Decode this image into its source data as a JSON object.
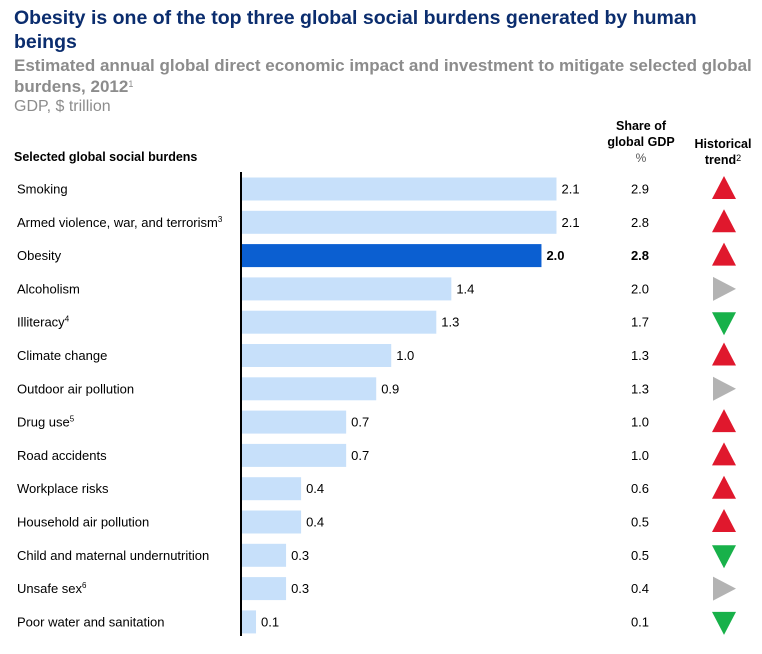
{
  "title": "Obesity is one of the top three global social burdens generated by human beings",
  "subtitle": "Estimated annual global direct economic impact and investment to mitigate selected global burdens, 2012",
  "subtitle_note": "1",
  "unit": "GDP, $ trillion",
  "row_header": "Selected global social burdens",
  "share_header_line1": "Share of",
  "share_header_line2": "global GDP",
  "share_header_unit": "%",
  "trend_header_line1": "Historical",
  "trend_header_line2": "trend",
  "trend_header_note": "2",
  "colors": {
    "bar": "#c7e0fa",
    "highlight": "#0b5fd1",
    "up": "#e0182d",
    "flat": "#b3b3b3",
    "down": "#18b14a"
  },
  "chart_data": {
    "type": "bar",
    "orientation": "horizontal",
    "categories": [
      {
        "label": "Smoking",
        "note": ""
      },
      {
        "label": "Armed violence, war, and terrorism",
        "note": "3"
      },
      {
        "label": "Obesity",
        "note": ""
      },
      {
        "label": "Alcoholism",
        "note": ""
      },
      {
        "label": "Illiteracy",
        "note": "4"
      },
      {
        "label": "Climate change",
        "note": ""
      },
      {
        "label": "Outdoor air pollution",
        "note": ""
      },
      {
        "label": "Drug use",
        "note": "5"
      },
      {
        "label": "Road accidents",
        "note": ""
      },
      {
        "label": "Workplace risks",
        "note": ""
      },
      {
        "label": "Household air pollution",
        "note": ""
      },
      {
        "label": "Child and maternal undernutrition",
        "note": ""
      },
      {
        "label": "Unsafe sex",
        "note": "6"
      },
      {
        "label": "Poor water and sanitation",
        "note": ""
      }
    ],
    "values": [
      2.1,
      2.1,
      2.0,
      1.4,
      1.3,
      1.0,
      0.9,
      0.7,
      0.7,
      0.4,
      0.4,
      0.3,
      0.3,
      0.1
    ],
    "value_labels": [
      "2.1",
      "2.1",
      "2.0",
      "1.4",
      "1.3",
      "1.0",
      "0.9",
      "0.7",
      "0.7",
      "0.4",
      "0.4",
      "0.3",
      "0.3",
      "0.1"
    ],
    "share_of_gdp": [
      "2.9",
      "2.8",
      "2.8",
      "2.0",
      "1.7",
      "1.3",
      "1.3",
      "1.0",
      "1.0",
      "0.6",
      "0.5",
      "0.5",
      "0.4",
      "0.1"
    ],
    "trend": [
      "up",
      "up",
      "up",
      "flat",
      "down",
      "up",
      "flat",
      "up",
      "up",
      "up",
      "up",
      "down",
      "flat",
      "down"
    ],
    "highlight_index": 2,
    "xlim": [
      0,
      2.15
    ],
    "grid": false,
    "legend": "none"
  }
}
